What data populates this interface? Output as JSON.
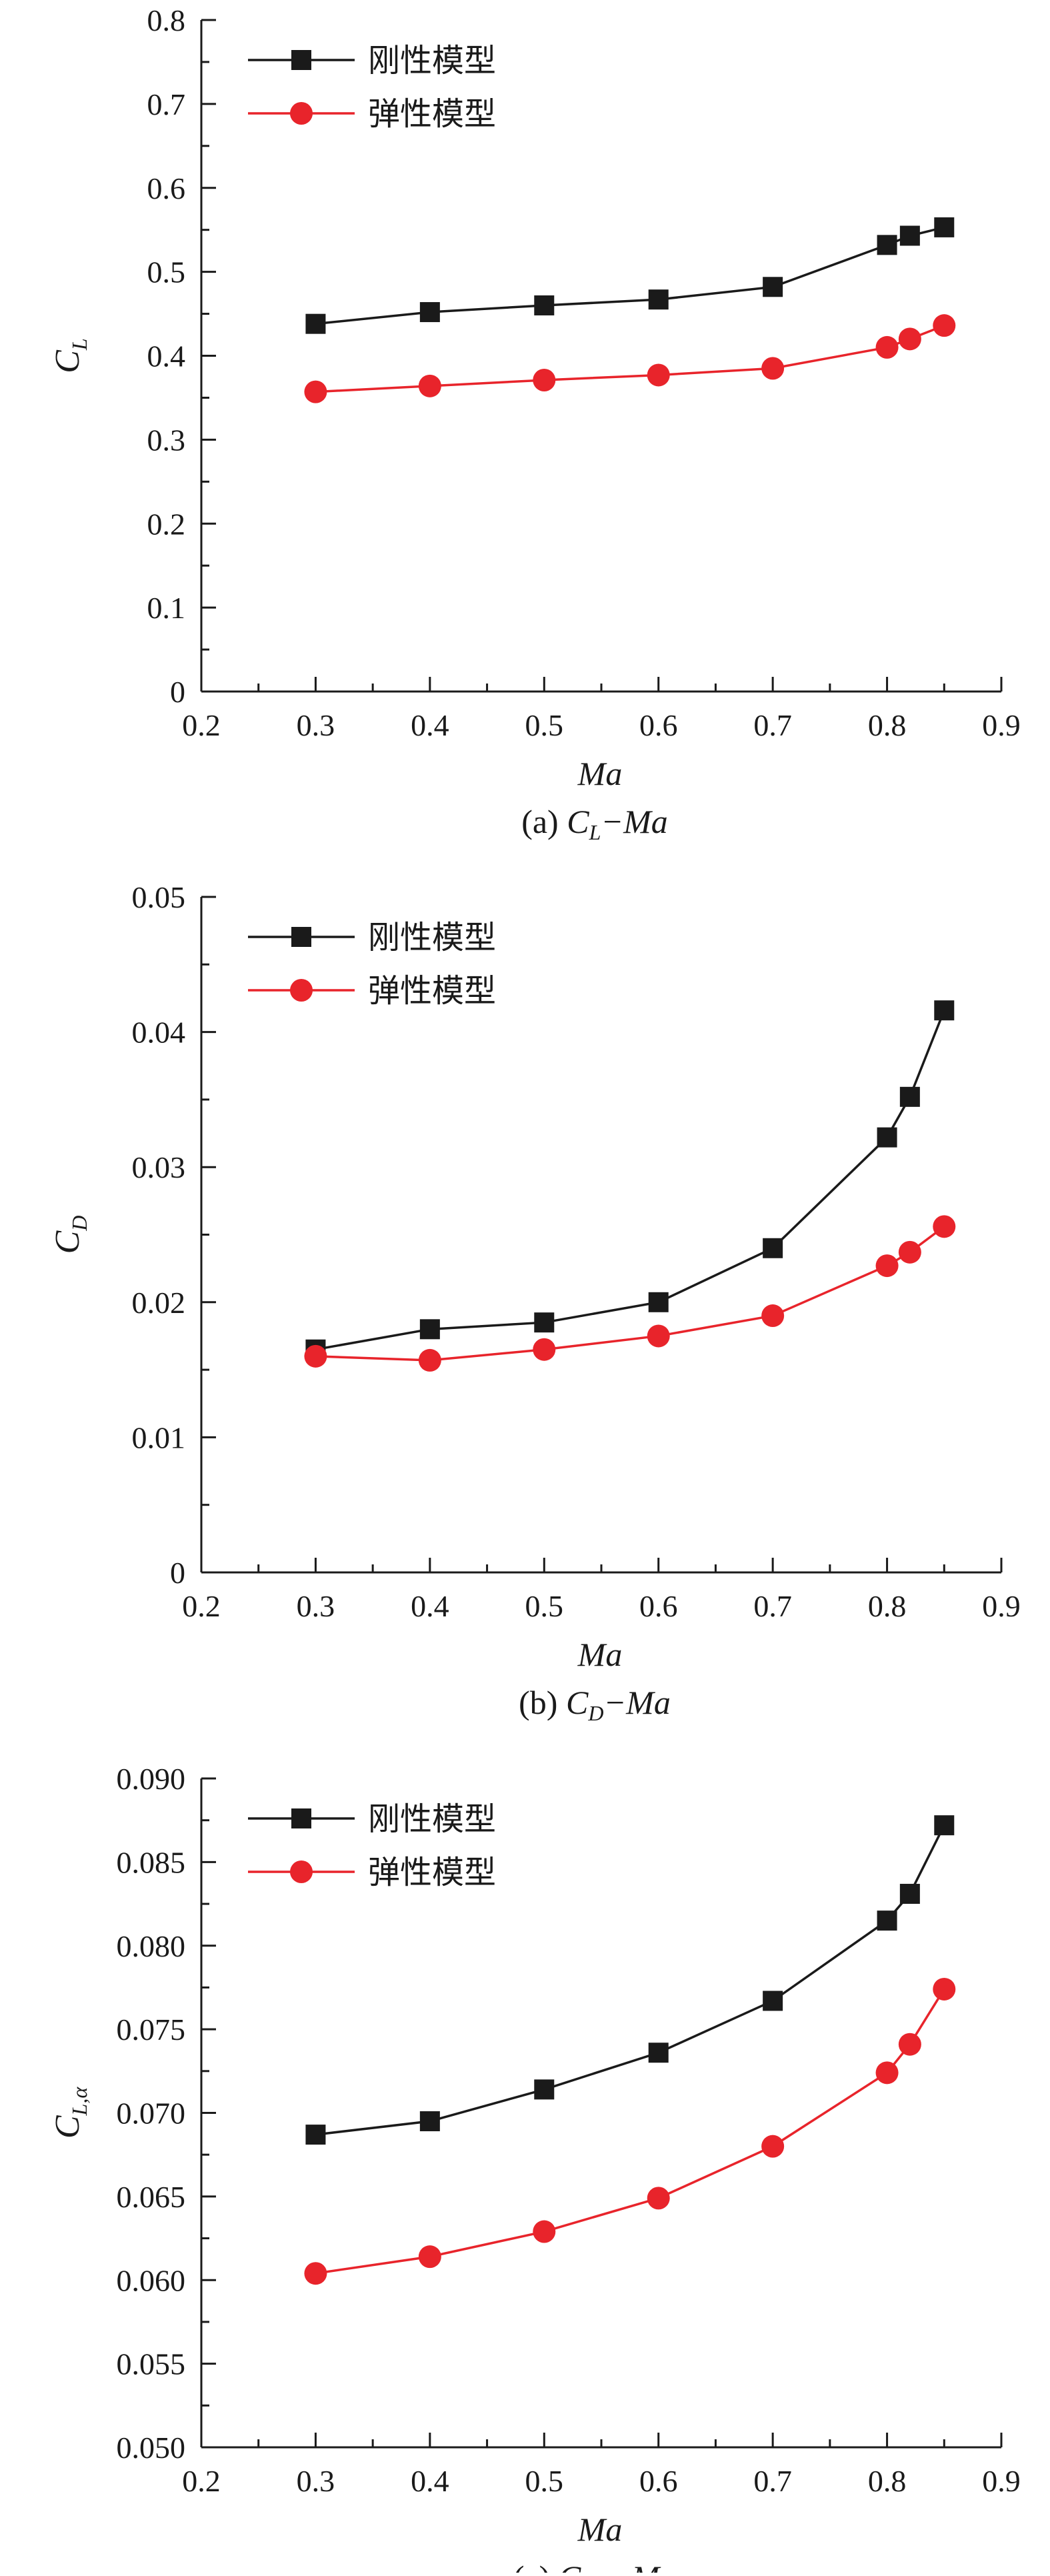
{
  "colors": {
    "rigid": "#1a1a1a",
    "elastic": "#e8242b",
    "axis": "#1a1a1a"
  },
  "legend": {
    "rigid": "刚性模型",
    "elastic": "弹性模型"
  },
  "chart_data": [
    {
      "type": "line",
      "x": [
        0.3,
        0.4,
        0.5,
        0.6,
        0.7,
        0.8,
        0.82,
        0.85
      ],
      "series": [
        {
          "name": "刚性模型",
          "values": [
            0.438,
            0.452,
            0.46,
            0.467,
            0.482,
            0.532,
            0.543,
            0.553
          ]
        },
        {
          "name": "弹性模型",
          "values": [
            0.357,
            0.364,
            0.371,
            0.377,
            0.385,
            0.41,
            0.42,
            0.436
          ]
        }
      ],
      "xlim": [
        0.2,
        0.9
      ],
      "xticks": [
        0.2,
        0.3,
        0.4,
        0.5,
        0.6,
        0.7,
        0.8,
        0.9
      ],
      "xtick_labels": [
        "0.2",
        "0.3",
        "0.4",
        "0.5",
        "0.6",
        "0.7",
        "0.8",
        "0.9"
      ],
      "ylim": [
        0,
        0.8
      ],
      "yticks": [
        0,
        0.1,
        0.2,
        0.3,
        0.4,
        0.5,
        0.6,
        0.7,
        0.8
      ],
      "ytick_labels": [
        "0",
        "0.1",
        "0.2",
        "0.3",
        "0.4",
        "0.5",
        "0.6",
        "0.7",
        "0.8"
      ],
      "xlabel": "Ma",
      "ylabel": {
        "main": "C",
        "sub": "L"
      },
      "caption": {
        "prefix": "(a) ",
        "sym": "C",
        "sub": "L",
        "suffix": "−Ma"
      },
      "legend_position": "top-left",
      "grid": false
    },
    {
      "type": "line",
      "x": [
        0.3,
        0.4,
        0.5,
        0.6,
        0.7,
        0.8,
        0.82,
        0.85
      ],
      "series": [
        {
          "name": "刚性模型",
          "values": [
            0.0165,
            0.018,
            0.0185,
            0.02,
            0.024,
            0.0322,
            0.0352,
            0.0416
          ]
        },
        {
          "name": "弹性模型",
          "values": [
            0.016,
            0.0157,
            0.0165,
            0.0175,
            0.019,
            0.0227,
            0.0237,
            0.0256
          ]
        }
      ],
      "xlim": [
        0.2,
        0.9
      ],
      "xticks": [
        0.2,
        0.3,
        0.4,
        0.5,
        0.6,
        0.7,
        0.8,
        0.9
      ],
      "xtick_labels": [
        "0.2",
        "0.3",
        "0.4",
        "0.5",
        "0.6",
        "0.7",
        "0.8",
        "0.9"
      ],
      "ylim": [
        0,
        0.05
      ],
      "yticks": [
        0,
        0.01,
        0.02,
        0.03,
        0.04,
        0.05
      ],
      "ytick_labels": [
        "0",
        "0.01",
        "0.02",
        "0.03",
        "0.04",
        "0.05"
      ],
      "xlabel": "Ma",
      "ylabel": {
        "main": "C",
        "sub": "D"
      },
      "caption": {
        "prefix": "(b) ",
        "sym": "C",
        "sub": "D",
        "suffix": "−Ma"
      },
      "legend_position": "top-left",
      "grid": false
    },
    {
      "type": "line",
      "x": [
        0.3,
        0.4,
        0.5,
        0.6,
        0.7,
        0.8,
        0.82,
        0.85
      ],
      "series": [
        {
          "name": "刚性模型",
          "values": [
            0.0687,
            0.0695,
            0.0714,
            0.0736,
            0.0767,
            0.0815,
            0.0831,
            0.0872
          ]
        },
        {
          "name": "弹性模型",
          "values": [
            0.0604,
            0.0614,
            0.0629,
            0.0649,
            0.068,
            0.0724,
            0.0741,
            0.0774
          ]
        }
      ],
      "xlim": [
        0.2,
        0.9
      ],
      "xticks": [
        0.2,
        0.3,
        0.4,
        0.5,
        0.6,
        0.7,
        0.8,
        0.9
      ],
      "xtick_labels": [
        "0.2",
        "0.3",
        "0.4",
        "0.5",
        "0.6",
        "0.7",
        "0.8",
        "0.9"
      ],
      "ylim": [
        0.05,
        0.09
      ],
      "yticks": [
        0.05,
        0.055,
        0.06,
        0.065,
        0.07,
        0.075,
        0.08,
        0.085,
        0.09
      ],
      "ytick_labels": [
        "0.050",
        "0.055",
        "0.060",
        "0.065",
        "0.070",
        "0.075",
        "0.080",
        "0.085",
        "0.090"
      ],
      "xlabel": "Ma",
      "ylabel": {
        "main": "C",
        "sub": "L,α"
      },
      "caption": {
        "prefix": "(c) ",
        "sym": "C",
        "sub": "L,α",
        "suffix": "−Ma"
      },
      "legend_position": "top-left",
      "grid": false
    }
  ]
}
